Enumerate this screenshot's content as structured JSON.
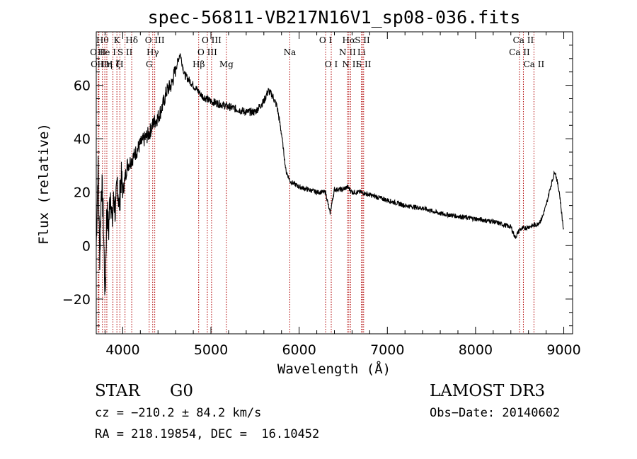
{
  "chart_data": {
    "type": "line",
    "title": "spec-56811-VB217N16V1_sp08-036.fits",
    "xlabel": "Wavelength (Å)",
    "ylabel": "Flux (relative)",
    "xlim": [
      3700,
      9100
    ],
    "ylim": [
      -33,
      80
    ],
    "xticks": [
      4000,
      5000,
      6000,
      7000,
      8000,
      9000
    ],
    "yticks": [
      -20,
      0,
      20,
      40,
      60
    ],
    "tick_labels_y": [
      "−20",
      "0",
      "20",
      "40",
      "60"
    ],
    "line_color": "#000000",
    "marker_color": "#b00000",
    "spectrum": {
      "name": "flux",
      "x": [
        3700,
        3720,
        3740,
        3760,
        3780,
        3800,
        3820,
        3840,
        3860,
        3880,
        3900,
        3920,
        3940,
        3960,
        3980,
        4000,
        4050,
        4100,
        4150,
        4200,
        4250,
        4300,
        4350,
        4400,
        4450,
        4500,
        4550,
        4600,
        4650,
        4700,
        4750,
        4800,
        4850,
        4900,
        4950,
        5000,
        5100,
        5200,
        5300,
        5400,
        5500,
        5600,
        5650,
        5700,
        5750,
        5800,
        5850,
        5900,
        6000,
        6100,
        6200,
        6300,
        6350,
        6400,
        6500,
        6550,
        6600,
        6700,
        6800,
        6900,
        7000,
        7200,
        7400,
        7600,
        7800,
        8000,
        8200,
        8400,
        8450,
        8500,
        8600,
        8700,
        8750,
        8800,
        8850,
        8900,
        8950,
        9000
      ],
      "y": [
        0,
        30,
        -5,
        25,
        10,
        -20,
        15,
        5,
        22,
        8,
        18,
        12,
        25,
        14,
        26,
        20,
        30,
        32,
        35,
        38,
        40,
        42,
        46,
        48,
        52,
        58,
        60,
        66,
        72,
        64,
        62,
        60,
        58,
        56,
        55,
        54,
        53,
        52,
        51,
        50,
        50,
        54,
        58,
        56,
        52,
        42,
        28,
        24,
        22,
        21,
        20,
        20,
        12,
        21,
        21,
        22,
        20,
        20,
        19,
        18,
        17,
        15,
        14,
        12,
        11,
        10,
        9,
        7,
        3,
        6,
        7,
        8,
        10,
        15,
        22,
        28,
        20,
        5
      ]
    },
    "lines": [
      {
        "x": 3722,
        "label": "O II",
        "row": 2
      },
      {
        "x": 3730,
        "label": "O II",
        "row": 3
      },
      {
        "x": 3770,
        "label": "Hθ",
        "row": 1
      },
      {
        "x": 3797,
        "label": "H η",
        "row": 3
      },
      {
        "x": 3820,
        "label": "He I",
        "row": 2
      },
      {
        "x": 3889,
        "label": "H ζ",
        "row": 3
      },
      {
        "x": 3934,
        "label": "K",
        "row": 1
      },
      {
        "x": 3968,
        "label": "H",
        "row": 3
      },
      {
        "x": 4026,
        "label": "S II",
        "row": 2
      },
      {
        "x": 4102,
        "label": "Hδ",
        "row": 1
      },
      {
        "x": 4300,
        "label": "G",
        "row": 3
      },
      {
        "x": 4340,
        "label": "Hγ",
        "row": 2
      },
      {
        "x": 4363,
        "label": "O III",
        "row": 1
      },
      {
        "x": 4861,
        "label": "Hβ",
        "row": 3
      },
      {
        "x": 4959,
        "label": "O III",
        "row": 2
      },
      {
        "x": 5007,
        "label": "O III",
        "row": 1
      },
      {
        "x": 5175,
        "label": "Mg",
        "row": 3
      },
      {
        "x": 5894,
        "label": "Na",
        "row": 2
      },
      {
        "x": 6300,
        "label": "O I",
        "row": 1
      },
      {
        "x": 6364,
        "label": "O I",
        "row": 3
      },
      {
        "x": 6548,
        "label": "N II",
        "row": 2
      },
      {
        "x": 6563,
        "label": "Hα",
        "row": 1
      },
      {
        "x": 6583,
        "label": "N II",
        "row": 3
      },
      {
        "x": 6707,
        "label": "Li",
        "row": 2
      },
      {
        "x": 6717,
        "label": "S II",
        "row": 1
      },
      {
        "x": 6731,
        "label": "S II",
        "row": 3
      },
      {
        "x": 8498,
        "label": "Ca II",
        "row": 2
      },
      {
        "x": 8542,
        "label": "Ca II",
        "row": 1
      },
      {
        "x": 8662,
        "label": "Ca II",
        "row": 3
      }
    ]
  },
  "info": {
    "class": "STAR",
    "subclass": "G0",
    "survey": "LAMOST DR3",
    "cz": "cz = −210.2 ± 84.2 km/s",
    "obsdate": "Obs−Date: 20140602",
    "coords": "RA = 218.19854, DEC =  16.10452"
  }
}
